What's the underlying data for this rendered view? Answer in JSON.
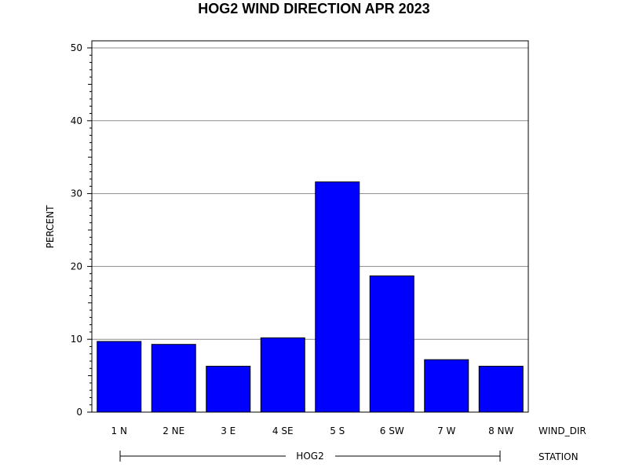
{
  "chart_data": {
    "type": "bar",
    "title": "HOG2 WIND DIRECTION APR 2023",
    "ylabel": "PERCENT",
    "xlabel": "WIND_DIR",
    "group_label": "STATION",
    "group_name": "HOG2",
    "categories": [
      "1 N",
      "2 NE",
      "3 E",
      "4 SE",
      "5 S",
      "6 SW",
      "7 W",
      "8 NW"
    ],
    "values": [
      9.7,
      9.3,
      6.3,
      10.2,
      31.6,
      18.7,
      7.2,
      6.3
    ],
    "ylim": [
      0,
      51
    ],
    "yticks": [
      "0",
      "10",
      "20",
      "30",
      "40",
      "50"
    ],
    "grid": true,
    "bar_color": "#0000ff"
  }
}
